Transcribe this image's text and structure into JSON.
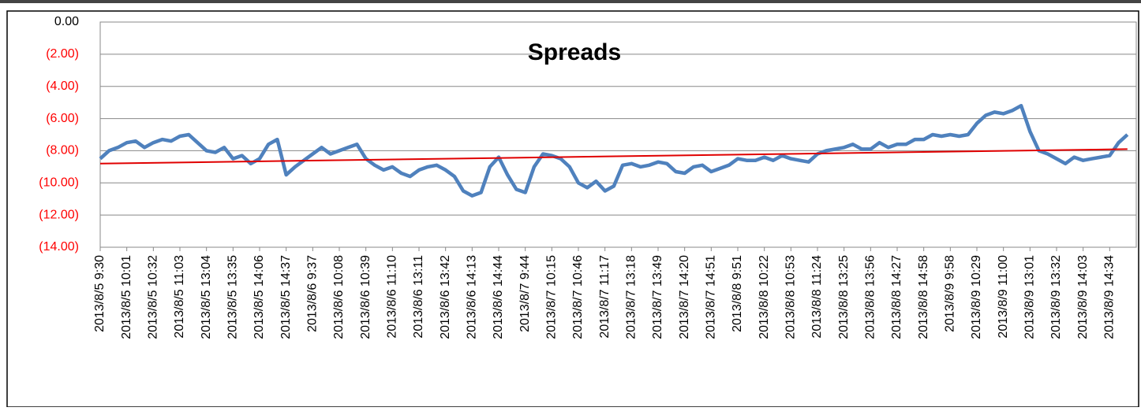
{
  "chart_data": {
    "type": "line",
    "title": "Spreads",
    "categories": [
      "2013/8/5 9:30",
      null,
      null,
      "2013/8/5 10:01",
      null,
      null,
      "2013/8/5 10:32",
      null,
      null,
      "2013/8/5 11:03",
      null,
      null,
      "2013/8/5 13:04",
      null,
      null,
      "2013/8/5 13:35",
      null,
      null,
      "2013/8/5 14:06",
      null,
      null,
      "2013/8/5 14:37",
      null,
      null,
      "2013/8/6 9:37",
      null,
      null,
      "2013/8/6 10:08",
      null,
      null,
      "2013/8/6 10:39",
      null,
      null,
      "2013/8/6 11:10",
      null,
      null,
      "2013/8/6 13:11",
      null,
      null,
      "2013/8/6 13:42",
      null,
      null,
      "2013/8/6 14:13",
      null,
      null,
      "2013/8/6 14:44",
      null,
      null,
      "2013/8/7 9:44",
      null,
      null,
      "2013/8/7 10:15",
      null,
      null,
      "2013/8/7 10:46",
      null,
      null,
      "2013/8/7 11:17",
      null,
      null,
      "2013/8/7 13:18",
      null,
      null,
      "2013/8/7 13:49",
      null,
      null,
      "2013/8/7 14:20",
      null,
      null,
      "2013/8/7 14:51",
      null,
      null,
      "2013/8/8 9:51",
      null,
      null,
      "2013/8/8 10:22",
      null,
      null,
      "2013/8/8 10:53",
      null,
      null,
      "2013/8/8 11:24",
      null,
      null,
      "2013/8/8 13:25",
      null,
      null,
      "2013/8/8 13:56",
      null,
      null,
      "2013/8/8 14:27",
      null,
      null,
      "2013/8/8 14:58",
      null,
      null,
      "2013/8/9 9:58",
      null,
      null,
      "2013/8/9 10:29",
      null,
      null,
      "2013/8/9 11:00",
      null,
      null,
      "2013/8/9 13:01",
      null,
      null,
      "2013/8/9 13:32",
      null,
      null,
      "2013/8/9 14:03",
      null,
      null,
      "2013/8/9 14:34",
      null,
      null
    ],
    "series": [
      {
        "color": "#4f81bd",
        "values": [
          -8.5,
          -8.0,
          -7.8,
          -7.5,
          -7.4,
          -7.8,
          -7.5,
          -7.3,
          -7.4,
          -7.1,
          -7.0,
          -7.5,
          -8.0,
          -8.1,
          -7.8,
          -8.5,
          -8.3,
          -8.8,
          -8.5,
          -7.6,
          -7.3,
          -9.5,
          -9.0,
          -8.6,
          -8.2,
          -7.8,
          -8.2,
          -8.0,
          -7.8,
          -7.6,
          -8.5,
          -8.9,
          -9.2,
          -9.0,
          -9.4,
          -9.6,
          -9.2,
          -9.0,
          -8.9,
          -9.2,
          -9.6,
          -10.5,
          -10.8,
          -10.6,
          -9.0,
          -8.4,
          -9.5,
          -10.4,
          -10.6,
          -9.0,
          -8.2,
          -8.3,
          -8.5,
          -9.0,
          -10.0,
          -10.3,
          -9.9,
          -10.5,
          -10.2,
          -8.9,
          -8.8,
          -9.0,
          -8.9,
          -8.7,
          -8.8,
          -9.3,
          -9.4,
          -9.0,
          -8.9,
          -9.3,
          -9.1,
          -8.9,
          -8.5,
          -8.6,
          -8.6,
          -8.4,
          -8.6,
          -8.3,
          -8.5,
          -8.6,
          -8.7,
          -8.2,
          -8.0,
          -7.9,
          -7.8,
          -7.6,
          -7.9,
          -7.9,
          -7.5,
          -7.8,
          -7.6,
          -7.6,
          -7.3,
          -7.3,
          -7.0,
          -7.1,
          -7.0,
          -7.1,
          -7.0,
          -6.3,
          -5.8,
          -5.6,
          -5.7,
          -5.5,
          -5.2,
          -6.8,
          -8.0,
          -8.2,
          -8.5,
          -8.8,
          -8.4,
          -8.6,
          -8.5,
          -8.4,
          -8.3,
          -7.5,
          -7.0
        ]
      }
    ],
    "trendline": {
      "color": "#e00000",
      "values": [
        -8.8,
        -7.9
      ]
    },
    "ylim": [
      0,
      -14
    ],
    "yticks": [
      {
        "value": 0,
        "label": "0.00"
      },
      {
        "value": -2,
        "label": "(2.00)"
      },
      {
        "value": -4,
        "label": "(4.00)"
      },
      {
        "value": -6,
        "label": "(6.00)"
      },
      {
        "value": -8,
        "label": "(8.00)"
      },
      {
        "value": -10,
        "label": "(10.00)"
      },
      {
        "value": -12,
        "label": "(12.00)"
      },
      {
        "value": -14,
        "label": "(14.00)"
      }
    ],
    "negative_label_color": "#ff0000",
    "grid": true
  }
}
